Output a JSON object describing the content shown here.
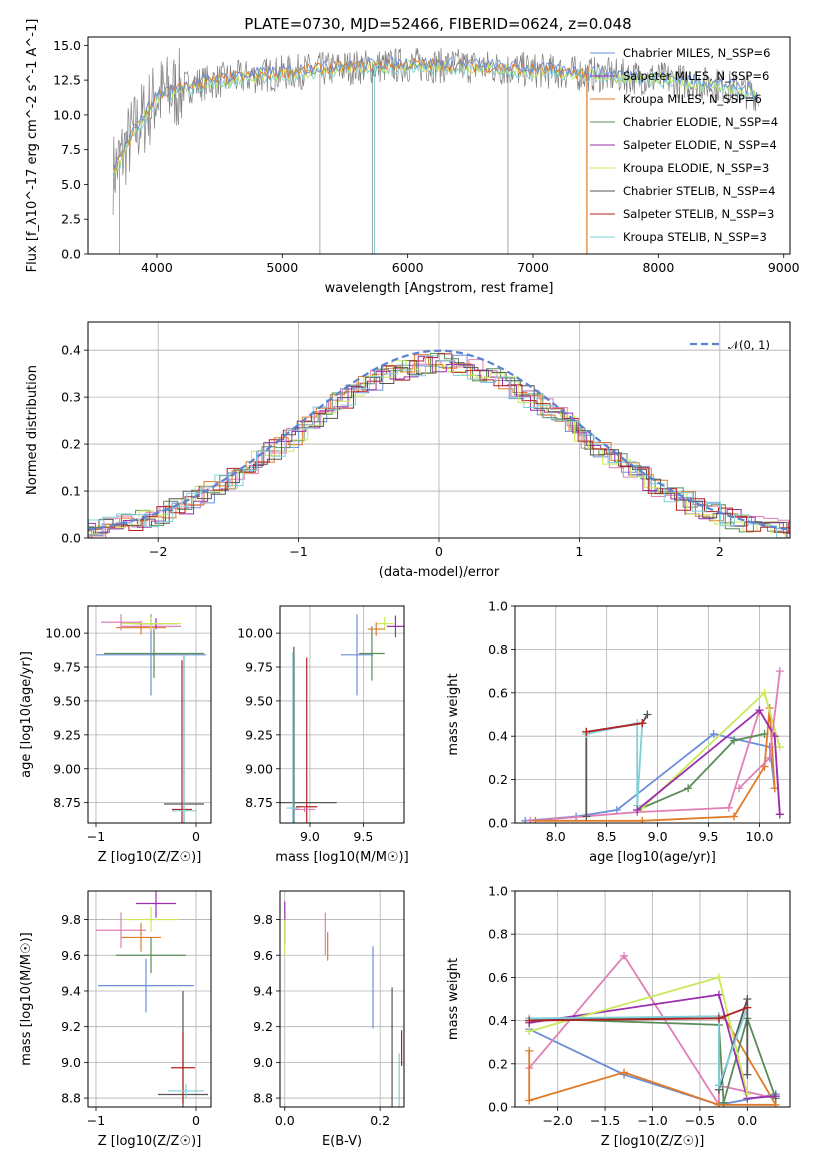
{
  "title": "PLATE=0730, MJD=52466, FIBERID=0624, z=0.048",
  "colors": {
    "Chabrier MILES": "#6b8fd8",
    "Salpeter MILES": "#9b2fae",
    "Kroupa MILES": "#e07b28",
    "Chabrier ELODIE": "#5a8c5a",
    "Salpeter ELODIE": "#9b2fae",
    "Kroupa ELODIE": "#c9e85a",
    "Chabrier STELIB": "#555555",
    "Salpeter STELIB": "#b22222",
    "Kroupa STELIB": "#7fd0d8",
    "data": "#808080"
  },
  "chart_data": [
    {
      "id": "spectrum",
      "type": "line",
      "xlabel": "wavelength [Angstrom, rest frame]",
      "ylabel": "Flux [f_λ10^-17 erg cm^-2 s^-1 A^-1]",
      "xlim": [
        3450,
        9050
      ],
      "ylim": [
        0,
        15.6
      ],
      "xticks": [
        "4000",
        "5000",
        "6000",
        "7000",
        "8000",
        "9000"
      ],
      "yticks": [
        "0.0",
        "2.5",
        "5.0",
        "7.5",
        "10.0",
        "12.5",
        "15.0"
      ],
      "legend": [
        "Chabrier MILES, N_SSP=6",
        "Salpeter MILES, N_SSP=6",
        "Kroupa MILES, N_SSP=6",
        "Chabrier ELODIE, N_SSP=4",
        "Salpeter ELODIE, N_SSP=4",
        "Kroupa ELODIE, N_SSP=3",
        "Chabrier STELIB, N_SSP=4",
        "Salpeter STELIB, N_SSP=3",
        "Kroupa STELIB, N_SSP=3"
      ],
      "legend_loc": "right",
      "continuum": [
        [
          3650,
          5.8
        ],
        [
          3800,
          8.5
        ],
        [
          4000,
          11.3
        ],
        [
          4300,
          12.2
        ],
        [
          4600,
          12.6
        ],
        [
          5000,
          13.0
        ],
        [
          5500,
          13.4
        ],
        [
          6000,
          13.6
        ],
        [
          6500,
          13.5
        ],
        [
          7000,
          13.2
        ],
        [
          7500,
          12.9
        ],
        [
          8000,
          12.6
        ],
        [
          8500,
          12.1
        ],
        [
          8800,
          11.5
        ]
      ]
    },
    {
      "id": "residuals",
      "type": "line",
      "xlabel": "(data-model)/error",
      "ylabel": "Normed distribution",
      "xlim": [
        -2.5,
        2.5
      ],
      "ylim": [
        0,
        0.46
      ],
      "xticks": [
        "−2",
        "−1",
        "0",
        "1",
        "2"
      ],
      "yticks": [
        "0.0",
        "0.1",
        "0.2",
        "0.3",
        "0.4"
      ],
      "grid": true,
      "legend": [
        "𝒩(0, 1)"
      ],
      "legend_loc": "top-right"
    },
    {
      "id": "age-vs-Z",
      "type": "scatter",
      "xlabel": "Z [log10(Z/Z☉)]",
      "ylabel": "age [log10(age/yr)]",
      "xlim": [
        -1.08,
        0.15
      ],
      "ylim": [
        8.6,
        10.2
      ],
      "xticks": [
        "−1",
        "0"
      ],
      "yticks": [
        "8.75",
        "9.00",
        "9.25",
        "9.50",
        "9.75",
        "10.00"
      ],
      "grid": true,
      "points": [
        {
          "series": "Chabrier MILES",
          "x": -0.45,
          "y": 9.84,
          "xerr": 0.55,
          "yerr": 0.3
        },
        {
          "series": "Salpeter MILES",
          "x": -0.45,
          "y": 10.05,
          "xerr": 0.3,
          "yerr": 0.05
        },
        {
          "series": "Kroupa MILES",
          "x": -0.55,
          "y": 10.04,
          "xerr": 0.25,
          "yerr": 0.05
        },
        {
          "series": "Chabrier ELODIE",
          "x": -0.42,
          "y": 9.85,
          "xerr": 0.5,
          "yerr": 0.18
        },
        {
          "series": "Salpeter ELODIE",
          "x": -0.4,
          "y": 10.07,
          "xerr": 0.22,
          "yerr": 0.04
        },
        {
          "series": "Kroupa ELODIE",
          "x": -0.45,
          "y": 10.07,
          "xerr": 0.3,
          "yerr": 0.05
        },
        {
          "series": "Salpeter MILES",
          "x": -0.75,
          "y": 10.08,
          "xerr": 0.2,
          "yerr": 0.06
        },
        {
          "series": "Chabrier STELIB",
          "x": -0.12,
          "y": 8.74,
          "xerr": 0.2,
          "yerr": 1.1
        },
        {
          "series": "Salpeter STELIB",
          "x": -0.14,
          "y": 8.7,
          "xerr": 0.1,
          "yerr": 1.1
        },
        {
          "series": "Kroupa STELIB",
          "x": -0.12,
          "y": 8.69,
          "xerr": 0.12,
          "yerr": 1.15
        }
      ]
    },
    {
      "id": "age-vs-mass",
      "type": "scatter",
      "xlabel": "mass [log10(M/M☉)]",
      "ylabel": "",
      "xlim": [
        8.72,
        9.88
      ],
      "ylim": [
        8.6,
        10.2
      ],
      "xticks": [
        "9.0",
        "9.5"
      ],
      "yticks": [
        "8.75",
        "9.00",
        "9.25",
        "9.50",
        "9.75",
        "10.00"
      ],
      "grid": true,
      "points": [
        {
          "series": "Chabrier MILES",
          "x": 9.44,
          "y": 9.84,
          "xerr": 0.15,
          "yerr": 0.3
        },
        {
          "series": "Chabrier ELODIE",
          "x": 9.58,
          "y": 9.85,
          "xerr": 0.12,
          "yerr": 0.2
        },
        {
          "series": "Salpeter ELODIE",
          "x": 9.8,
          "y": 10.05,
          "xerr": 0.08,
          "yerr": 0.08
        },
        {
          "series": "Kroupa ELODIE",
          "x": 9.7,
          "y": 10.07,
          "xerr": 0.08,
          "yerr": 0.05
        },
        {
          "series": "Kroupa MILES",
          "x": 9.62,
          "y": 10.03,
          "xerr": 0.08,
          "yerr": 0.05
        },
        {
          "series": "Chabrier STELIB",
          "x": 8.85,
          "y": 8.75,
          "xerr": 0.4,
          "yerr": 1.15
        },
        {
          "series": "Salpeter STELIB",
          "x": 8.97,
          "y": 8.72,
          "xerr": 0.1,
          "yerr": 1.1
        },
        {
          "series": "Kroupa STELIB",
          "x": 8.84,
          "y": 8.71,
          "xerr": 0.06,
          "yerr": 1.15
        },
        {
          "series": "Salpeter MILES",
          "x": 8.95,
          "y": 8.7,
          "xerr": 0.1,
          "yerr": 0.02
        }
      ]
    },
    {
      "id": "weight-vs-age",
      "type": "line",
      "xlabel": "age [log10(age/yr)]",
      "ylabel": "mass weight",
      "xlim": [
        7.6,
        10.3
      ],
      "ylim": [
        0,
        1.0
      ],
      "xticks": [
        "8.0",
        "8.5",
        "9.0",
        "9.5",
        "10.0"
      ],
      "yticks": [
        "0.0",
        "0.2",
        "0.4",
        "0.6",
        "0.8",
        "1.0"
      ],
      "grid": true,
      "series": [
        {
          "color": "Chabrier MILES",
          "x": [
            7.7,
            8.2,
            8.6,
            9.55,
            10.1,
            10.15
          ],
          "y": [
            0.01,
            0.03,
            0.06,
            0.41,
            0.35,
            0.16
          ]
        },
        {
          "color": "Salpeter MILES",
          "x": [
            7.75,
            8.8,
            9.7,
            10.0,
            10.15,
            10.2
          ],
          "y": [
            0.01,
            0.05,
            0.07,
            0.52,
            0.4,
            0.04
          ]
        },
        {
          "color": "Kroupa MILES",
          "x": [
            7.8,
            8.85,
            9.75,
            10.05,
            10.1,
            10.15
          ],
          "y": [
            0.01,
            0.01,
            0.03,
            0.26,
            0.53,
            0.16
          ]
        },
        {
          "color": "Chabrier ELODIE",
          "x": [
            8.8,
            9.3,
            9.75,
            10.05
          ],
          "y": [
            0.06,
            0.16,
            0.38,
            0.41
          ]
        },
        {
          "color": "Kroupa ELODIE",
          "x": [
            8.85,
            10.05,
            10.2
          ],
          "y": [
            0.07,
            0.6,
            0.35
          ]
        },
        {
          "color": "Chabrier STELIB",
          "x": [
            8.3,
            8.3,
            8.85,
            8.9
          ],
          "y": [
            0.03,
            0.42,
            0.46,
            0.5
          ]
        },
        {
          "color": "Kroupa STELIB",
          "x": [
            8.3,
            8.8,
            8.8,
            8.85
          ],
          "y": [
            0.41,
            0.46,
            0.08,
            0.46
          ]
        },
        {
          "color": "Salpeter STELIB",
          "x": [
            8.3,
            8.85
          ],
          "y": [
            0.42,
            0.46
          ]
        },
        {
          "color": "Salpeter ELODIE",
          "x": [
            8.8,
            10.0,
            10.15,
            10.2
          ],
          "y": [
            0.06,
            0.52,
            0.4,
            0.04
          ]
        },
        {
          "color": "Salpeter MILES",
          "x": [
            9.8,
            10.1,
            10.2
          ],
          "y": [
            0.16,
            0.3,
            0.7
          ]
        }
      ]
    },
    {
      "id": "mass-vs-Z",
      "type": "scatter",
      "xlabel": "Z [log10(Z/Z☉)]",
      "ylabel": "mass [log10(M/M☉)]",
      "xlim": [
        -1.08,
        0.15
      ],
      "ylim": [
        8.75,
        9.96
      ],
      "xticks": [
        "−1",
        "0"
      ],
      "yticks": [
        "8.8",
        "9.0",
        "9.2",
        "9.4",
        "9.6",
        "9.8"
      ],
      "grid": true,
      "points": [
        {
          "series": "Chabrier MILES",
          "x": -0.5,
          "y": 9.43,
          "xerr": 0.48,
          "yerr": 0.15
        },
        {
          "series": "Salpeter MILES",
          "x": -0.75,
          "y": 9.74,
          "xerr": 0.25,
          "yerr": 0.1
        },
        {
          "series": "Kroupa MILES",
          "x": -0.55,
          "y": 9.7,
          "xerr": 0.2,
          "yerr": 0.08
        },
        {
          "series": "Chabrier ELODIE",
          "x": -0.45,
          "y": 9.6,
          "xerr": 0.35,
          "yerr": 0.1
        },
        {
          "series": "Salpeter ELODIE",
          "x": -0.4,
          "y": 9.89,
          "xerr": 0.2,
          "yerr": 0.08
        },
        {
          "series": "Kroupa ELODIE",
          "x": -0.45,
          "y": 9.8,
          "xerr": 0.28,
          "yerr": 0.07
        },
        {
          "series": "Chabrier STELIB",
          "x": -0.13,
          "y": 8.82,
          "xerr": 0.25,
          "yerr": 0.58
        },
        {
          "series": "Salpeter STELIB",
          "x": -0.13,
          "y": 8.97,
          "xerr": 0.12,
          "yerr": 0.2
        },
        {
          "series": "Kroupa STELIB",
          "x": -0.1,
          "y": 8.84,
          "xerr": 0.18,
          "yerr": 0.04
        }
      ]
    },
    {
      "id": "mass-vs-EBV",
      "type": "scatter",
      "xlabel": "E(B-V)",
      "ylabel": "",
      "xlim": [
        -0.01,
        0.25
      ],
      "ylim": [
        8.75,
        9.96
      ],
      "xticks": [
        "0.0",
        "0.2"
      ],
      "yticks": [
        "8.8",
        "9.0",
        "9.2",
        "9.4",
        "9.6",
        "9.8"
      ],
      "grid": true,
      "points": [
        {
          "series": "Salpeter ELODIE",
          "x": 0.0,
          "y": 9.78,
          "xerr": 0,
          "yerr": 0.12
        },
        {
          "series": "Kroupa ELODIE",
          "x": 0.0,
          "y": 9.7,
          "xerr": 0,
          "yerr": 0.1
        },
        {
          "series": "Salpeter MILES",
          "x": 0.085,
          "y": 9.72,
          "xerr": 0,
          "yerr": 0.12
        },
        {
          "series": "Kroupa MILES",
          "x": 0.09,
          "y": 9.65,
          "xerr": 0,
          "yerr": 0.08
        },
        {
          "series": "Chabrier MILES",
          "x": 0.185,
          "y": 9.42,
          "xerr": 0,
          "yerr": 0.23
        },
        {
          "series": "Chabrier STELIB",
          "x": 0.225,
          "y": 9.0,
          "xerr": 0,
          "yerr": 0.42
        },
        {
          "series": "Kroupa STELIB",
          "x": 0.24,
          "y": 8.9,
          "xerr": 0,
          "yerr": 0.15
        },
        {
          "series": "Salpeter STELIB",
          "x": 0.245,
          "y": 9.08,
          "xerr": 0,
          "yerr": 0.1
        }
      ]
    },
    {
      "id": "weight-vs-Z",
      "type": "line",
      "xlabel": "Z [log10(Z/Z☉)]",
      "ylabel": "mass weight",
      "xlim": [
        -2.45,
        0.45
      ],
      "ylim": [
        0,
        1.0
      ],
      "xticks": [
        "−2.0",
        "−1.5",
        "−1.0",
        "−0.5",
        "0.0"
      ],
      "yticks": [
        "0.0",
        "0.2",
        "0.4",
        "0.6",
        "0.8",
        "1.0"
      ],
      "grid": true,
      "series": [
        {
          "color": "Chabrier MILES",
          "x": [
            -2.3,
            -1.3,
            -0.3,
            0.3
          ],
          "y": [
            0.36,
            0.15,
            0.01,
            0.06
          ]
        },
        {
          "color": "Salpeter MILES",
          "x": [
            -2.3,
            -1.3,
            -0.3,
            -0.3,
            0.3
          ],
          "y": [
            0.18,
            0.7,
            0.01,
            0.1,
            0.04
          ]
        },
        {
          "color": "Kroupa MILES",
          "x": [
            -2.3,
            -2.3,
            -1.3,
            -0.3,
            0.3,
            -0.25
          ],
          "y": [
            0.26,
            0.03,
            0.16,
            0.01,
            0.01,
            0.42
          ]
        },
        {
          "color": "Chabrier ELODIE",
          "x": [
            -2.3,
            -0.3,
            -0.25,
            0.0,
            0.3
          ],
          "y": [
            0.41,
            0.38,
            0.02,
            0.41,
            0.04
          ]
        },
        {
          "color": "Salpeter ELODIE",
          "x": [
            -2.3,
            -0.3,
            0.0,
            0.3
          ],
          "y": [
            0.39,
            0.52,
            0.04,
            0.05
          ]
        },
        {
          "color": "Kroupa ELODIE",
          "x": [
            -2.3,
            -0.3,
            0.0
          ],
          "y": [
            0.35,
            0.6,
            0.06
          ]
        },
        {
          "color": "Chabrier STELIB",
          "x": [
            -2.3,
            -0.3,
            -0.3,
            0.0,
            0.0
          ],
          "y": [
            0.4,
            0.42,
            0.08,
            0.5,
            0.15
          ]
        },
        {
          "color": "Kroupa STELIB",
          "x": [
            -2.3,
            -0.3,
            -0.3,
            0.0
          ],
          "y": [
            0.41,
            0.42,
            0.1,
            0.46
          ]
        },
        {
          "color": "Salpeter STELIB",
          "x": [
            -2.3,
            -0.3,
            0.0
          ],
          "y": [
            0.4,
            0.41,
            0.46
          ]
        }
      ]
    }
  ]
}
